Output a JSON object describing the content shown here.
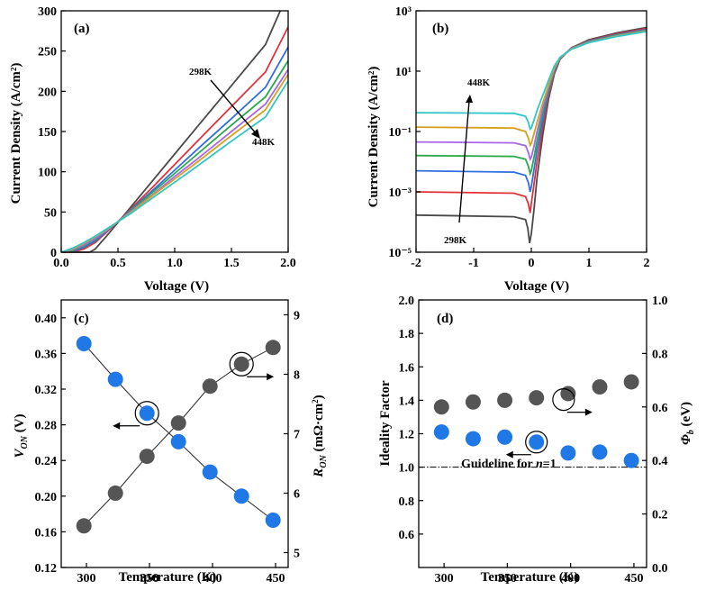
{
  "colors": {
    "T298": "#4a4a4a",
    "T323": "#e0323a",
    "T348": "#2f6fe0",
    "T373": "#2aa84a",
    "T398": "#a866e8",
    "T423": "#d8a020",
    "T448": "#2ec6c8",
    "marker_dark": "#555555",
    "marker_blue": "#1f78e6"
  },
  "chart_data": [
    {
      "type": "line",
      "panel": "(a)",
      "xlabel": "Voltage (V)",
      "ylabel": "Current Density (A/cm²)",
      "xlim": [
        0,
        2
      ],
      "ylim": [
        0,
        300
      ],
      "xticks": [
        "0.0",
        "0.5",
        "1.0",
        "1.5",
        "2.0"
      ],
      "yticks": [
        "0",
        "50",
        "100",
        "150",
        "200",
        "250",
        "300"
      ],
      "annotations": {
        "top": "298K",
        "bottom": "448K"
      },
      "series": [
        {
          "color_key": "T298",
          "x": [
            0,
            0.15,
            0.25,
            0.3,
            0.4,
            0.5,
            0.6,
            0.8,
            1.0,
            1.2,
            1.5,
            1.8,
            1.93
          ],
          "y": [
            0,
            0,
            0,
            4,
            20,
            37,
            54,
            88,
            122,
            156,
            207,
            258,
            300
          ]
        },
        {
          "color_key": "T323",
          "x": [
            0,
            0.1,
            0.2,
            0.3,
            0.4,
            0.5,
            0.6,
            0.8,
            1.0,
            1.2,
            1.5,
            1.8,
            2.0
          ],
          "y": [
            0,
            0,
            4,
            12,
            25,
            38,
            52,
            80,
            109,
            138,
            181,
            224,
            280
          ]
        },
        {
          "color_key": "T348",
          "x": [
            0,
            0.1,
            0.2,
            0.3,
            0.4,
            0.5,
            0.6,
            0.8,
            1.0,
            1.2,
            1.5,
            1.8,
            2.0
          ],
          "y": [
            0,
            1,
            6,
            14,
            26,
            38,
            51,
            76,
            102,
            128,
            166,
            205,
            255
          ]
        },
        {
          "color_key": "T373",
          "x": [
            0,
            0.1,
            0.2,
            0.3,
            0.4,
            0.5,
            0.6,
            0.8,
            1.0,
            1.2,
            1.5,
            1.8,
            2.0
          ],
          "y": [
            0,
            2,
            8,
            16,
            27,
            38,
            50,
            74,
            98,
            122,
            158,
            193,
            238
          ]
        },
        {
          "color_key": "T398",
          "x": [
            0,
            0.1,
            0.2,
            0.3,
            0.4,
            0.5,
            0.6,
            0.8,
            1.0,
            1.2,
            1.5,
            1.8,
            2.0
          ],
          "y": [
            0,
            3,
            9,
            17,
            27,
            38,
            49,
            71,
            94,
            116,
            150,
            184,
            227
          ]
        },
        {
          "color_key": "T423",
          "x": [
            0,
            0.1,
            0.2,
            0.3,
            0.4,
            0.5,
            0.6,
            0.8,
            1.0,
            1.2,
            1.5,
            1.8,
            2.0
          ],
          "y": [
            0,
            4,
            11,
            19,
            28,
            38,
            48,
            70,
            91,
            112,
            145,
            177,
            221
          ]
        },
        {
          "color_key": "T448",
          "x": [
            0,
            0.1,
            0.2,
            0.3,
            0.4,
            0.5,
            0.6,
            0.8,
            1.0,
            1.2,
            1.5,
            1.8,
            2.0
          ],
          "y": [
            0,
            5,
            12,
            20,
            29,
            38,
            47,
            67,
            87,
            107,
            138,
            168,
            213
          ]
        }
      ]
    },
    {
      "type": "line",
      "panel": "(b)",
      "xlabel": "Voltage (V)",
      "ylabel": "Current Density (A/cm²)",
      "yscale": "log",
      "xlim": [
        -2,
        2
      ],
      "ylim": [
        1e-05,
        1000
      ],
      "xticks": [
        "-2",
        "-1",
        "0",
        "1",
        "2"
      ],
      "yticks": [
        "10⁻⁵",
        "10⁻³",
        "10⁻¹",
        "10¹",
        "10³"
      ],
      "annotations": {
        "top": "448K",
        "bottom": "298K"
      },
      "series": [
        {
          "color_key": "T298",
          "x": [
            -2,
            -0.3,
            -0.1,
            -0.06,
            -0.03,
            0.0,
            0.05,
            0.1,
            0.2,
            0.3,
            0.4,
            0.5,
            0.7,
            1.0,
            1.5,
            2.0
          ],
          "y": [
            0.00017,
            0.00015,
            0.00012,
            6e-05,
            2e-05,
            4e-05,
            0.0003,
            0.003,
            0.08,
            1.2,
            8,
            25,
            60,
            110,
            190,
            280
          ]
        },
        {
          "color_key": "T323",
          "x": [
            -2,
            -0.3,
            -0.1,
            -0.05,
            -0.02,
            0.0,
            0.05,
            0.1,
            0.2,
            0.3,
            0.4,
            0.5,
            0.7,
            1.0,
            1.5,
            2.0
          ],
          "y": [
            0.001,
            0.0009,
            0.0007,
            0.0004,
            0.0002,
            0.0004,
            0.002,
            0.01,
            0.15,
            1.5,
            9,
            26,
            60,
            105,
            175,
            260
          ]
        },
        {
          "color_key": "T348",
          "x": [
            -2,
            -0.3,
            -0.1,
            -0.05,
            -0.02,
            0.0,
            0.05,
            0.1,
            0.2,
            0.3,
            0.4,
            0.5,
            0.7,
            1.0,
            1.5,
            2.0
          ],
          "y": [
            0.005,
            0.0045,
            0.0035,
            0.002,
            0.001,
            0.0015,
            0.006,
            0.025,
            0.25,
            2,
            10,
            27,
            58,
            100,
            165,
            240
          ]
        },
        {
          "color_key": "T373",
          "x": [
            -2,
            -0.3,
            -0.1,
            -0.05,
            -0.02,
            0.0,
            0.05,
            0.1,
            0.2,
            0.3,
            0.4,
            0.5,
            0.7,
            1.0,
            1.5,
            2.0
          ],
          "y": [
            0.016,
            0.015,
            0.012,
            0.007,
            0.004,
            0.005,
            0.015,
            0.05,
            0.4,
            2.5,
            11,
            28,
            57,
            96,
            158,
            228
          ]
        },
        {
          "color_key": "T398",
          "x": [
            -2,
            -0.3,
            -0.1,
            -0.05,
            -0.02,
            0.0,
            0.05,
            0.1,
            0.2,
            0.3,
            0.4,
            0.5,
            0.7,
            1.0,
            1.5,
            2.0
          ],
          "y": [
            0.045,
            0.042,
            0.034,
            0.02,
            0.012,
            0.014,
            0.035,
            0.1,
            0.6,
            3,
            12,
            28,
            56,
            93,
            152,
            220
          ]
        },
        {
          "color_key": "T423",
          "x": [
            -2,
            -0.3,
            -0.1,
            -0.05,
            -0.02,
            0.0,
            0.05,
            0.1,
            0.2,
            0.3,
            0.4,
            0.5,
            0.7,
            1.0,
            1.5,
            2.0
          ],
          "y": [
            0.14,
            0.13,
            0.1,
            0.06,
            0.035,
            0.04,
            0.09,
            0.2,
            0.9,
            3.5,
            13,
            28,
            55,
            90,
            148,
            214
          ]
        },
        {
          "color_key": "T448",
          "x": [
            -2,
            -0.3,
            -0.1,
            -0.05,
            -0.02,
            0.0,
            0.05,
            0.1,
            0.2,
            0.3,
            0.4,
            0.5,
            0.7,
            1.0,
            1.5,
            2.0
          ],
          "y": [
            0.42,
            0.4,
            0.32,
            0.2,
            0.12,
            0.13,
            0.25,
            0.5,
            1.6,
            5,
            15,
            29,
            54,
            88,
            143,
            206
          ]
        }
      ]
    },
    {
      "type": "scatter",
      "panel": "(c)",
      "xlabel": "Temperature (K)",
      "ylabel_left": "V_ON (V)",
      "ylabel_right": "R_ON (mΩ·cm²)",
      "xlim": [
        280,
        460
      ],
      "ylim_left": [
        0.12,
        0.42
      ],
      "ylim_right": [
        4.75,
        9.25
      ],
      "xticks": [
        "300",
        "350",
        "400",
        "450"
      ],
      "yticks_left": [
        "0.12",
        "0.16",
        "0.20",
        "0.24",
        "0.28",
        "0.32",
        "0.36",
        "0.40"
      ],
      "yticks_right": [
        "5",
        "6",
        "7",
        "8",
        "9"
      ],
      "series": [
        {
          "axis": "left",
          "color_key": "marker_blue",
          "x": [
            298,
            323,
            348,
            373,
            398,
            423,
            448
          ],
          "y": [
            0.371,
            0.331,
            0.293,
            0.261,
            0.227,
            0.2,
            0.173
          ]
        },
        {
          "axis": "right",
          "color_key": "marker_dark",
          "x": [
            298,
            323,
            348,
            373,
            398,
            423,
            448
          ],
          "y": [
            5.45,
            6.0,
            6.62,
            7.18,
            7.8,
            8.17,
            8.45
          ]
        }
      ]
    },
    {
      "type": "scatter",
      "panel": "(d)",
      "xlabel": "Temperature (K)",
      "ylabel_left": "Ideality Factor",
      "ylabel_right": "Φb (eV)",
      "xlim": [
        280,
        460
      ],
      "ylim_left": [
        0.4,
        2.0
      ],
      "ylim_right": [
        0.0,
        1.0
      ],
      "xticks": [
        "300",
        "350",
        "400",
        "450"
      ],
      "yticks_left": [
        "0.6",
        "0.8",
        "1.0",
        "1.2",
        "1.4",
        "1.6",
        "1.8",
        "2.0"
      ],
      "yticks_right": [
        "0.0",
        "0.2",
        "0.4",
        "0.6",
        "0.8",
        "1.0"
      ],
      "guideline": {
        "y": 1.0,
        "label": "Guideline for ",
        "label_italic": "n",
        "label_tail": "=1"
      },
      "series": [
        {
          "axis": "left",
          "color_key": "marker_blue",
          "x": [
            298,
            323,
            348,
            373,
            398,
            423,
            448
          ],
          "y": [
            1.21,
            1.17,
            1.18,
            1.15,
            1.085,
            1.09,
            1.04
          ]
        },
        {
          "axis": "left",
          "color_key": "marker_dark",
          "x": [
            298,
            323,
            348,
            373,
            398,
            423,
            448
          ],
          "y": [
            1.36,
            1.39,
            1.4,
            1.415,
            1.44,
            1.48,
            1.51
          ]
        }
      ]
    }
  ]
}
